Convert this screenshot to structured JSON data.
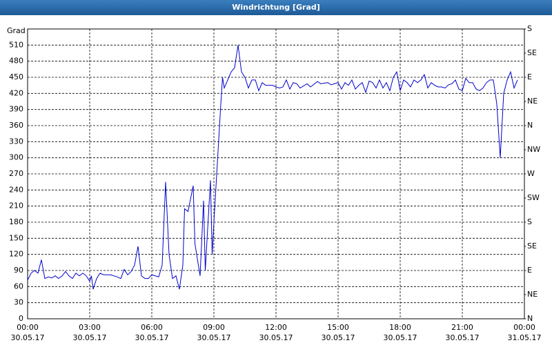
{
  "chart_data": {
    "type": "line",
    "title": "Windrichtung [Grad]",
    "y_label": "Grad",
    "color": "#0000cc",
    "grid": true,
    "x": [
      "30.05.17 00:00",
      "30.05.17 00:10",
      "30.05.17 00:20",
      "30.05.17 00:30",
      "30.05.17 00:40",
      "30.05.17 00:50",
      "30.05.17 01:00",
      "30.05.17 01:10",
      "30.05.17 01:20",
      "30.05.17 01:30",
      "30.05.17 01:40",
      "30.05.17 01:50",
      "30.05.17 02:00",
      "30.05.17 02:10",
      "30.05.17 02:20",
      "30.05.17 02:30",
      "30.05.17 02:40",
      "30.05.17 02:50",
      "30.05.17 03:00",
      "30.05.17 03:05",
      "30.05.17 03:10",
      "30.05.17 03:20",
      "30.05.17 03:30",
      "30.05.17 03:40",
      "30.05.17 04:00",
      "30.05.17 04:20",
      "30.05.17 04:30",
      "30.05.17 04:40",
      "30.05.17 04:50",
      "30.05.17 05:00",
      "30.05.17 05:10",
      "30.05.17 05:20",
      "30.05.17 05:30",
      "30.05.17 05:40",
      "30.05.17 05:50",
      "30.05.17 06:00",
      "30.05.17 06:10",
      "30.05.17 06:20",
      "30.05.17 06:30",
      "30.05.17 06:40",
      "30.05.17 06:50",
      "30.05.17 07:00",
      "30.05.17 07:10",
      "30.05.17 07:20",
      "30.05.17 07:30",
      "30.05.17 07:35",
      "30.05.17 07:45",
      "30.05.17 08:00",
      "30.05.17 08:05",
      "30.05.17 08:20",
      "30.05.17 08:30",
      "30.05.17 08:35",
      "30.05.17 08:50",
      "30.05.17 08:55",
      "30.05.17 09:00",
      "30.05.17 09:10",
      "30.05.17 09:20",
      "30.05.17 09:25",
      "30.05.17 09:30",
      "30.05.17 09:40",
      "30.05.17 09:50",
      "30.05.17 10:00",
      "30.05.17 10:10",
      "30.05.17 10:20",
      "30.05.17 10:30",
      "30.05.17 10:40",
      "30.05.17 10:50",
      "30.05.17 11:00",
      "30.05.17 11:10",
      "30.05.17 11:20",
      "30.05.17 11:30",
      "30.05.17 11:50",
      "30.05.17 12:00",
      "30.05.17 12:10",
      "30.05.17 12:20",
      "30.05.17 12:30",
      "30.05.17 12:40",
      "30.05.17 12:50",
      "30.05.17 13:00",
      "30.05.17 13:10",
      "30.05.17 13:30",
      "30.05.17 13:40",
      "30.05.17 14:00",
      "30.05.17 14:10",
      "30.05.17 14:30",
      "30.05.17 14:40",
      "30.05.17 15:00",
      "30.05.17 15:10",
      "30.05.17 15:20",
      "30.05.17 15:30",
      "30.05.17 15:40",
      "30.05.17 15:50",
      "30.05.17 16:00",
      "30.05.17 16:10",
      "30.05.17 16:20",
      "30.05.17 16:30",
      "30.05.17 16:40",
      "30.05.17 16:50",
      "30.05.17 17:00",
      "30.05.17 17:10",
      "30.05.17 17:20",
      "30.05.17 17:30",
      "30.05.17 17:40",
      "30.05.17 17:50",
      "30.05.17 18:00",
      "30.05.17 18:10",
      "30.05.17 18:20",
      "30.05.17 18:30",
      "30.05.17 18:40",
      "30.05.17 18:50",
      "30.05.17 19:00",
      "30.05.17 19:10",
      "30.05.17 19:20",
      "30.05.17 19:30",
      "30.05.17 19:40",
      "30.05.17 19:50",
      "30.05.17 20:00",
      "30.05.17 20:10",
      "30.05.17 20:20",
      "30.05.17 20:30",
      "30.05.17 20:40",
      "30.05.17 20:50",
      "30.05.17 21:00",
      "30.05.17 21:10",
      "30.05.17 21:20",
      "30.05.17 21:30",
      "30.05.17 21:40",
      "30.05.17 21:50",
      "30.05.17 22:00",
      "30.05.17 22:10",
      "30.05.17 22:20",
      "30.05.17 22:30",
      "30.05.17 22:40",
      "30.05.17 22:50",
      "30.05.17 23:00",
      "30.05.17 23:10",
      "30.05.17 23:20",
      "30.05.17 23:30",
      "30.05.17 23:40"
    ],
    "values": [
      72,
      85,
      90,
      85,
      110,
      75,
      78,
      76,
      80,
      75,
      80,
      88,
      80,
      75,
      85,
      80,
      85,
      80,
      70,
      80,
      55,
      75,
      85,
      82,
      82,
      78,
      75,
      92,
      82,
      88,
      100,
      135,
      80,
      75,
      75,
      82,
      80,
      78,
      100,
      255,
      120,
      75,
      80,
      55,
      100,
      205,
      200,
      248,
      140,
      80,
      220,
      90,
      258,
      120,
      180,
      290,
      400,
      450,
      430,
      445,
      460,
      468,
      510,
      460,
      450,
      430,
      445,
      445,
      425,
      440,
      435,
      435,
      432,
      430,
      432,
      445,
      428,
      440,
      438,
      430,
      438,
      432,
      442,
      438,
      440,
      436,
      440,
      428,
      440,
      435,
      445,
      428,
      435,
      440,
      422,
      443,
      440,
      430,
      445,
      430,
      440,
      425,
      450,
      460,
      425,
      445,
      440,
      432,
      445,
      440,
      445,
      455,
      430,
      440,
      435,
      432,
      432,
      430,
      436,
      438,
      445,
      428,
      425,
      448,
      440,
      440,
      428,
      425,
      430,
      440,
      445,
      445,
      400,
      300,
      420,
      445,
      460,
      430,
      445
    ],
    "xlim": [
      "30.05.17 00:00",
      "31.05.17 00:00"
    ],
    "xticks": [
      {
        "value": "30.05.17 00:00",
        "label": "00:00\n30.05.17"
      },
      {
        "value": "30.05.17 03:00",
        "label": "03:00\n30.05.17"
      },
      {
        "value": "30.05.17 06:00",
        "label": "06:00\n30.05.17"
      },
      {
        "value": "30.05.17 09:00",
        "label": "09:00\n30.05.17"
      },
      {
        "value": "30.05.17 12:00",
        "label": "12:00\n30.05.17"
      },
      {
        "value": "30.05.17 15:00",
        "label": "15:00\n30.05.17"
      },
      {
        "value": "30.05.17 18:00",
        "label": "18:00\n30.05.17"
      },
      {
        "value": "30.05.17 21:00",
        "label": "21:00\n30.05.17"
      },
      {
        "value": "31.05.17 00:00",
        "label": "00:00\n31.05.17"
      }
    ],
    "ylim": [
      0,
      540
    ],
    "yticks": [
      0,
      30,
      60,
      90,
      120,
      150,
      180,
      210,
      240,
      270,
      300,
      330,
      360,
      390,
      420,
      450,
      480,
      510
    ],
    "y2lim": [
      0,
      540
    ],
    "y2ticks": [
      {
        "value": 0,
        "label": "N"
      },
      {
        "value": 45,
        "label": "NE"
      },
      {
        "value": 90,
        "label": "E"
      },
      {
        "value": 135,
        "label": "SE"
      },
      {
        "value": 180,
        "label": "S"
      },
      {
        "value": 225,
        "label": "SW"
      },
      {
        "value": 270,
        "label": "W"
      },
      {
        "value": 315,
        "label": "NW"
      },
      {
        "value": 360,
        "label": "N"
      },
      {
        "value": 405,
        "label": "NE"
      },
      {
        "value": 450,
        "label": "E"
      },
      {
        "value": 495,
        "label": "SE"
      },
      {
        "value": 540,
        "label": "S"
      }
    ]
  }
}
